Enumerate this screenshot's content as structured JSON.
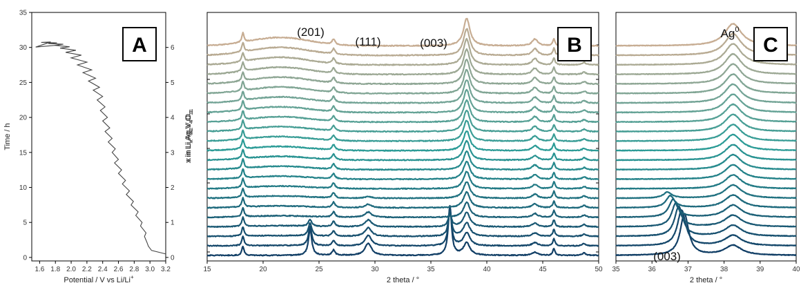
{
  "chart_data": [
    {
      "id": "A",
      "type": "line",
      "panel_label": "A",
      "xlabel": "Potential / V vs Li/Li",
      "xlabel_sup": "+",
      "ylabel": "Time / h",
      "xlim": [
        1.5,
        3.2
      ],
      "ylim": [
        -0.5,
        35
      ],
      "xticks": [
        1.6,
        1.8,
        2.0,
        2.2,
        2.4,
        2.6,
        2.8,
        3.0,
        3.2
      ],
      "xtick_labels": [
        "1.6",
        "1.8",
        "2.0",
        "2.2",
        "2.4",
        "2.6",
        "2.8",
        "3.0",
        "3.2"
      ],
      "yticks": [
        0,
        5,
        10,
        15,
        20,
        25,
        30,
        35
      ],
      "ytick_labels": [
        "0",
        "5",
        "10",
        "15",
        "20",
        "25",
        "30",
        "35"
      ],
      "right_axis": {
        "label": "x in Li",
        "label_parts": [
          "x in Li",
          "x",
          "Ag",
          "2",
          "V",
          "4",
          "O",
          "11"
        ],
        "ticks": [
          0,
          1,
          2,
          3,
          4,
          5,
          6
        ],
        "tick_labels": [
          "0",
          "1",
          "2",
          "3",
          "4",
          "5",
          "6"
        ],
        "time_per_unit": 5.0
      },
      "series": [
        {
          "x": [
            3.2,
            3.02,
            2.98,
            2.96,
            2.93,
            2.95,
            2.88,
            2.9,
            2.82,
            2.85,
            2.76,
            2.79,
            2.7,
            2.74,
            2.65,
            2.69,
            2.6,
            2.64,
            2.55,
            2.6,
            2.52,
            2.56,
            2.47,
            2.52,
            2.43,
            2.49,
            2.4,
            2.46,
            2.37,
            2.43,
            2.33,
            2.4,
            2.28,
            2.36,
            2.22,
            2.31,
            2.15,
            2.26,
            2.08,
            2.2,
            2.0,
            2.13,
            1.93,
            2.06,
            1.86,
            1.98,
            1.79,
            1.9,
            1.71,
            1.82,
            1.62,
            1.74,
            1.55,
            1.85
          ],
          "y": [
            0.5,
            1.0,
            1.6,
            2.2,
            3.0,
            3.5,
            4.5,
            5.0,
            6.0,
            6.5,
            7.5,
            8.0,
            9.0,
            9.5,
            10.5,
            11.0,
            12.0,
            12.5,
            13.5,
            14.0,
            15.0,
            15.5,
            16.5,
            17.0,
            18.0,
            18.5,
            19.5,
            20.0,
            21.0,
            21.5,
            22.5,
            23.0,
            23.9,
            24.3,
            25.2,
            25.6,
            26.4,
            26.8,
            27.5,
            27.9,
            28.5,
            28.9,
            29.3,
            29.6,
            29.9,
            30.1,
            30.3,
            30.45,
            30.55,
            30.65,
            30.72,
            30.78,
            30.05,
            30.35
          ]
        }
      ]
    },
    {
      "id": "B",
      "type": "line",
      "panel_label": "B",
      "xlabel": "2 theta / °",
      "xlim": [
        15,
        50
      ],
      "xticks": [
        15,
        20,
        25,
        30,
        35,
        40,
        45,
        50
      ],
      "xtick_labels": [
        "15",
        "20",
        "25",
        "30",
        "35",
        "40",
        "45",
        "50"
      ],
      "y_offset_stack": true,
      "curve_count": 23,
      "annotations": [
        "(201)",
        "(111)",
        "(003)"
      ],
      "annotation_positions_2theta": [
        24.0,
        29.3,
        36.5
      ],
      "peaks": [
        {
          "position": 18.2,
          "intensity": 0.6,
          "width": 0.12,
          "persistent": true
        },
        {
          "position": 24.2,
          "intensity": 1.7,
          "width": 0.18,
          "fades_by_curve": 4
        },
        {
          "position": 29.4,
          "intensity": 0.8,
          "width": 0.35,
          "fades_by_curve": 7
        },
        {
          "position": 36.7,
          "intensity": 3.2,
          "width": 0.18,
          "fades_by_curve": 4
        },
        {
          "position": 38.2,
          "intensity": 1.8,
          "width": 0.35,
          "grows": true
        },
        {
          "position": 26.3,
          "intensity": 0.35,
          "width": 0.15,
          "persistent": true
        },
        {
          "position": 44.3,
          "intensity": 0.45,
          "width": 0.3,
          "grows": true
        },
        {
          "position": 46.0,
          "intensity": 0.45,
          "width": 0.12,
          "persistent": true
        },
        {
          "position": 48.7,
          "intensity": 0.15,
          "width": 0.2,
          "persistent": true
        }
      ],
      "colors": {
        "bottom": "#123f66",
        "middle": "#2b9b96",
        "top": "#c7ad93"
      }
    },
    {
      "id": "C",
      "type": "line",
      "panel_label": "C",
      "xlabel": "2 theta / °",
      "xlim": [
        35,
        40
      ],
      "xticks": [
        35,
        36,
        37,
        38,
        39,
        40
      ],
      "xtick_labels": [
        "35",
        "36",
        "37",
        "38",
        "39",
        "40"
      ],
      "y_offset_stack": true,
      "curve_count": 23,
      "annotations": [
        "Ag",
        "(003)"
      ],
      "annotation_sup": "0",
      "annotation_positions_2theta": [
        38.0,
        36.3
      ],
      "peaks": [
        {
          "position": 36.6,
          "intensity": 3.0,
          "width": 0.14,
          "shift_start": 36.9,
          "shift_end": 36.35,
          "fades_by_curve": 7
        },
        {
          "position": 38.25,
          "intensity": 1.6,
          "width": 0.28,
          "grows": true
        }
      ]
    }
  ]
}
